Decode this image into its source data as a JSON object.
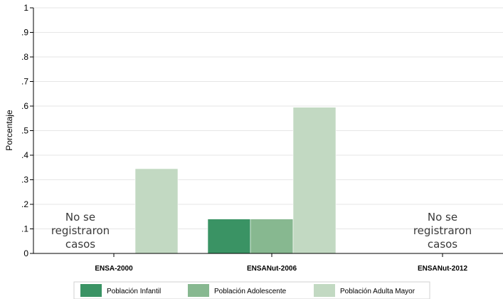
{
  "chart_data": {
    "type": "bar",
    "ylabel": "Porcentaje",
    "xlabel": "",
    "ylim": [
      0,
      1
    ],
    "y_ticks": [
      "0",
      ".1",
      ".2",
      ".3",
      ".4",
      ".5",
      ".6",
      ".7",
      ".8",
      ".9",
      "1"
    ],
    "grid": true,
    "categories": [
      "ENSA-2000",
      "ENSANut-2006",
      "ENSANut-2012"
    ],
    "series": [
      {
        "name": "Población Infantil",
        "color": "#3a9364",
        "values": [
          null,
          0.14,
          null
        ]
      },
      {
        "name": "Población Adolescente",
        "color": "#87b890",
        "values": [
          null,
          0.14,
          null
        ]
      },
      {
        "name": "Población Adulta Mayor",
        "color": "#c2d9c2",
        "values": [
          0.345,
          0.595,
          null
        ]
      }
    ],
    "annotations": [
      {
        "category": "ENSA-2000",
        "lines": [
          "No se",
          "registraron",
          "casos"
        ]
      },
      {
        "category": "ENSANut-2012",
        "lines": [
          "No se",
          "registraron",
          "casos"
        ]
      }
    ],
    "legend_position": "bottom"
  }
}
